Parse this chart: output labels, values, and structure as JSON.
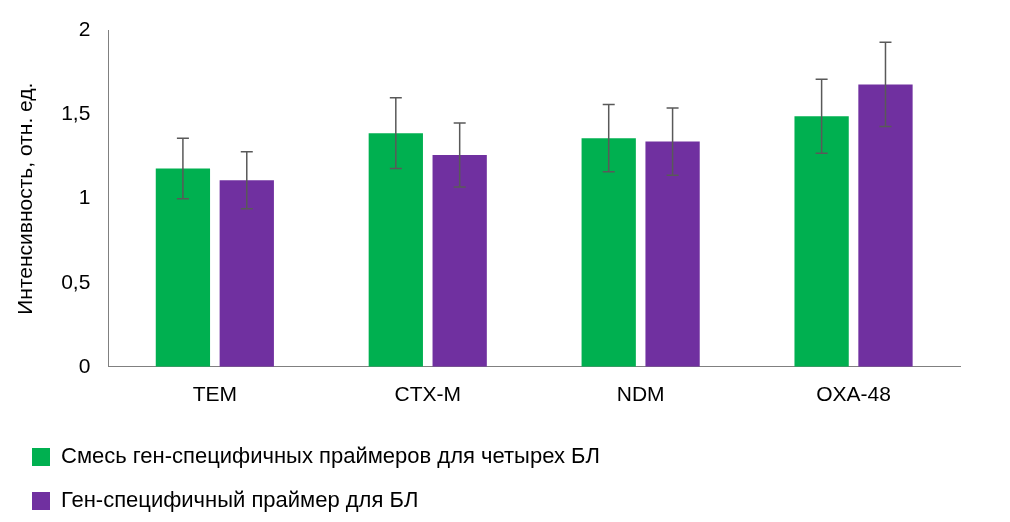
{
  "chart_data": {
    "type": "bar",
    "ylabel": "Интенсивность, отн. ед.",
    "categories": [
      "TEM",
      "CTX-M",
      "NDM",
      "OXA-48"
    ],
    "series": [
      {
        "name": "Смесь ген-специфичных праймеров для четырех БЛ",
        "color": "#00b050",
        "values": [
          1.18,
          1.39,
          1.36,
          1.49
        ],
        "errors": [
          0.18,
          0.21,
          0.2,
          0.22
        ]
      },
      {
        "name": "Ген-специфичный праймер для БЛ",
        "color": "#7030a0",
        "values": [
          1.11,
          1.26,
          1.34,
          1.68
        ],
        "errors": [
          0.17,
          0.19,
          0.2,
          0.25
        ]
      }
    ],
    "ylim": [
      0,
      2
    ],
    "yticks": [
      0,
      {
        "value": 0.5,
        "label": "0,5"
      },
      1,
      {
        "value": 1.5,
        "label": "1,5"
      },
      2
    ],
    "grid": false,
    "legend": "bottom"
  }
}
